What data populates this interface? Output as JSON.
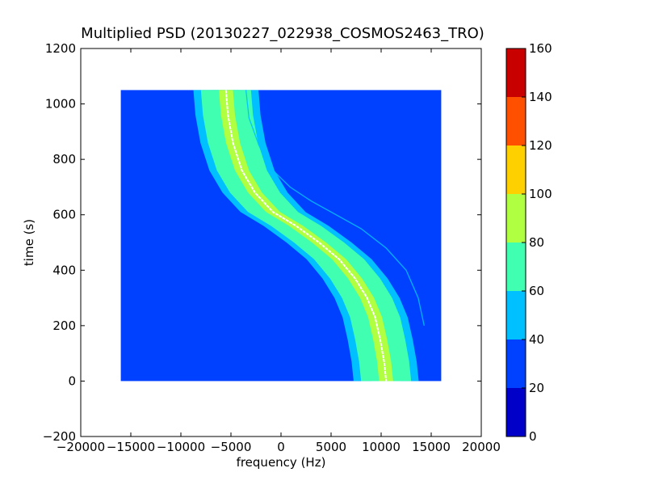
{
  "chart_data": {
    "type": "heatmap",
    "title": "Multiplied PSD (20130227_022938_COSMOS2463_TRO)",
    "xlabel": "frequency (Hz)",
    "ylabel": "time (s)",
    "xlim": [
      -20000,
      20000
    ],
    "ylim": [
      -200,
      1200
    ],
    "x_ticks": [
      -20000,
      -15000,
      -10000,
      -5000,
      0,
      5000,
      10000,
      15000,
      20000
    ],
    "x_tick_labels": [
      "−20000",
      "−15000",
      "−10000",
      "−5000",
      "0",
      "5000",
      "10000",
      "15000",
      "20000"
    ],
    "y_ticks": [
      -200,
      0,
      200,
      400,
      600,
      800,
      1000,
      1200
    ],
    "y_tick_labels": [
      "−200",
      "0",
      "200",
      "400",
      "600",
      "800",
      "1000",
      "1200"
    ],
    "data_extent": {
      "x": [
        -16000,
        16000
      ],
      "t": [
        0,
        1050
      ]
    },
    "background_level": 25,
    "main_track": {
      "points": [
        [
          -5500,
          1050
        ],
        [
          -5300,
          960
        ],
        [
          -4800,
          860
        ],
        [
          -3900,
          760
        ],
        [
          -2600,
          680
        ],
        [
          -800,
          610
        ],
        [
          1500,
          560
        ],
        [
          3800,
          500
        ],
        [
          5800,
          440
        ],
        [
          7400,
          370
        ],
        [
          8600,
          300
        ],
        [
          9400,
          230
        ],
        [
          9900,
          150
        ],
        [
          10300,
          70
        ],
        [
          10500,
          0
        ]
      ],
      "peak_level": 85,
      "band_levels": [
        {
          "half_width_hz": 3250,
          "level": 45
        },
        {
          "half_width_hz": 2500,
          "level": 60
        },
        {
          "half_width_hz": 1400,
          "level": 75
        },
        {
          "half_width_hz": 700,
          "level": 85
        }
      ]
    },
    "secondary_track": {
      "points": [
        [
          -3500,
          1050
        ],
        [
          -3200,
          950
        ],
        [
          -2200,
          850
        ],
        [
          -800,
          760
        ],
        [
          900,
          700
        ],
        [
          3000,
          650
        ],
        [
          5500,
          600
        ],
        [
          8000,
          550
        ],
        [
          10500,
          480
        ],
        [
          12500,
          400
        ],
        [
          13700,
          300
        ],
        [
          14300,
          200
        ]
      ],
      "level": 45
    },
    "colorbar": {
      "min": 0,
      "max": 160,
      "ticks": [
        0,
        20,
        40,
        60,
        80,
        100,
        120,
        140,
        160
      ],
      "tick_labels": [
        "0",
        "20",
        "40",
        "60",
        "80",
        "100",
        "120",
        "140",
        "160"
      ],
      "bins": [
        {
          "from": 0,
          "to": 20,
          "color": "#0000c8"
        },
        {
          "from": 20,
          "to": 40,
          "color": "#0040ff"
        },
        {
          "from": 40,
          "to": 60,
          "color": "#00c0ff"
        },
        {
          "from": 60,
          "to": 80,
          "color": "#40ffb0"
        },
        {
          "from": 80,
          "to": 100,
          "color": "#b0ff40"
        },
        {
          "from": 100,
          "to": 120,
          "color": "#ffd000"
        },
        {
          "from": 120,
          "to": 140,
          "color": "#ff5000"
        },
        {
          "from": 140,
          "to": 160,
          "color": "#c80000"
        }
      ]
    }
  }
}
